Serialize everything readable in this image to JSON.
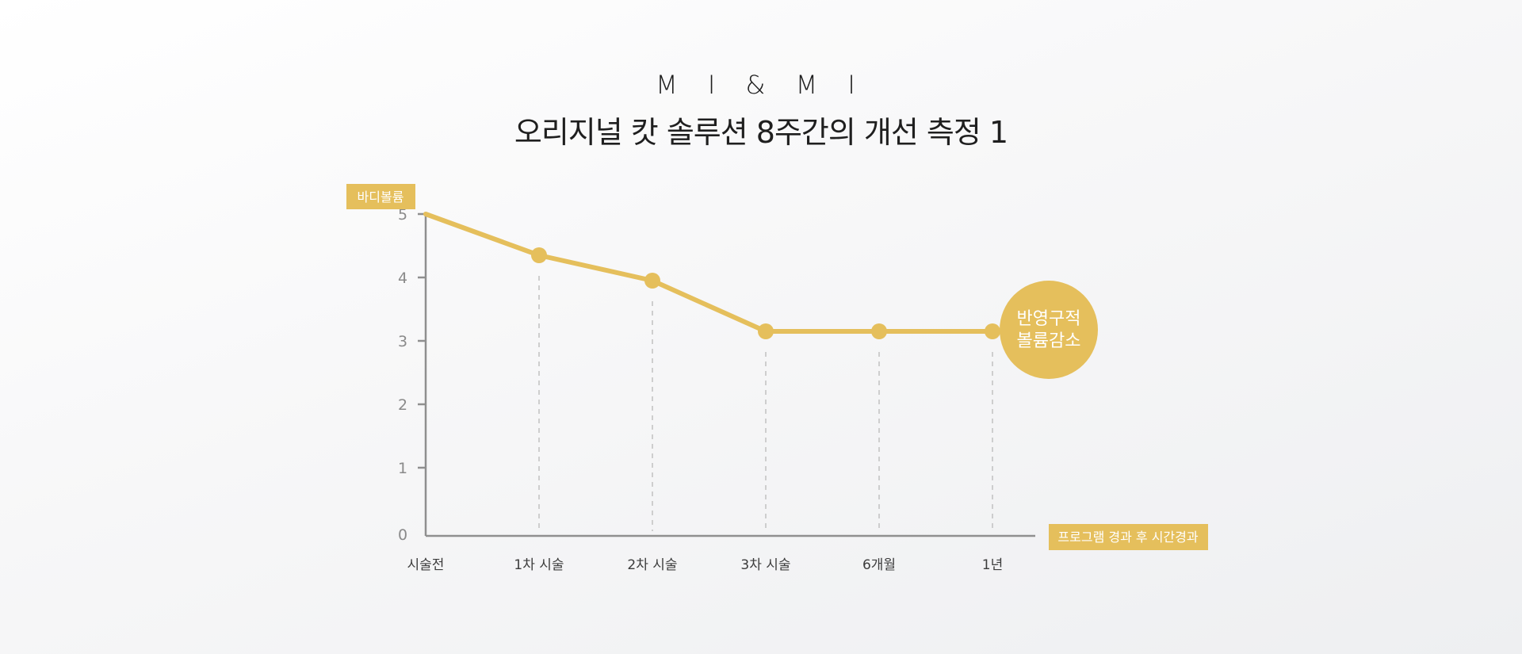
{
  "header": {
    "brand": "M I & M I",
    "title": "오리지널 캇 솔루션 8주간의 개선 측정 1"
  },
  "colors": {
    "accent": "#e5bf5c",
    "axis": "#8f8f8f",
    "guide": "#c4c4c4",
    "text_dark": "#1f1f1f"
  },
  "chart_data": {
    "type": "line",
    "categories": [
      "시술전",
      "1차 시술",
      "2차 시술",
      "3차 시술",
      "6개월",
      "1년"
    ],
    "series": [
      {
        "values": [
          5.0,
          4.35,
          3.95,
          3.15,
          3.15,
          3.15
        ]
      }
    ],
    "ylabel": "바디볼륨",
    "xlabel": "프로그램 경과 후 시간경과",
    "yticks": [
      0,
      1,
      2,
      3,
      4,
      5
    ],
    "ylim": [
      0,
      5
    ],
    "grid": false,
    "annotation": {
      "line1": "반영구적",
      "line2": "볼륨감소"
    }
  }
}
